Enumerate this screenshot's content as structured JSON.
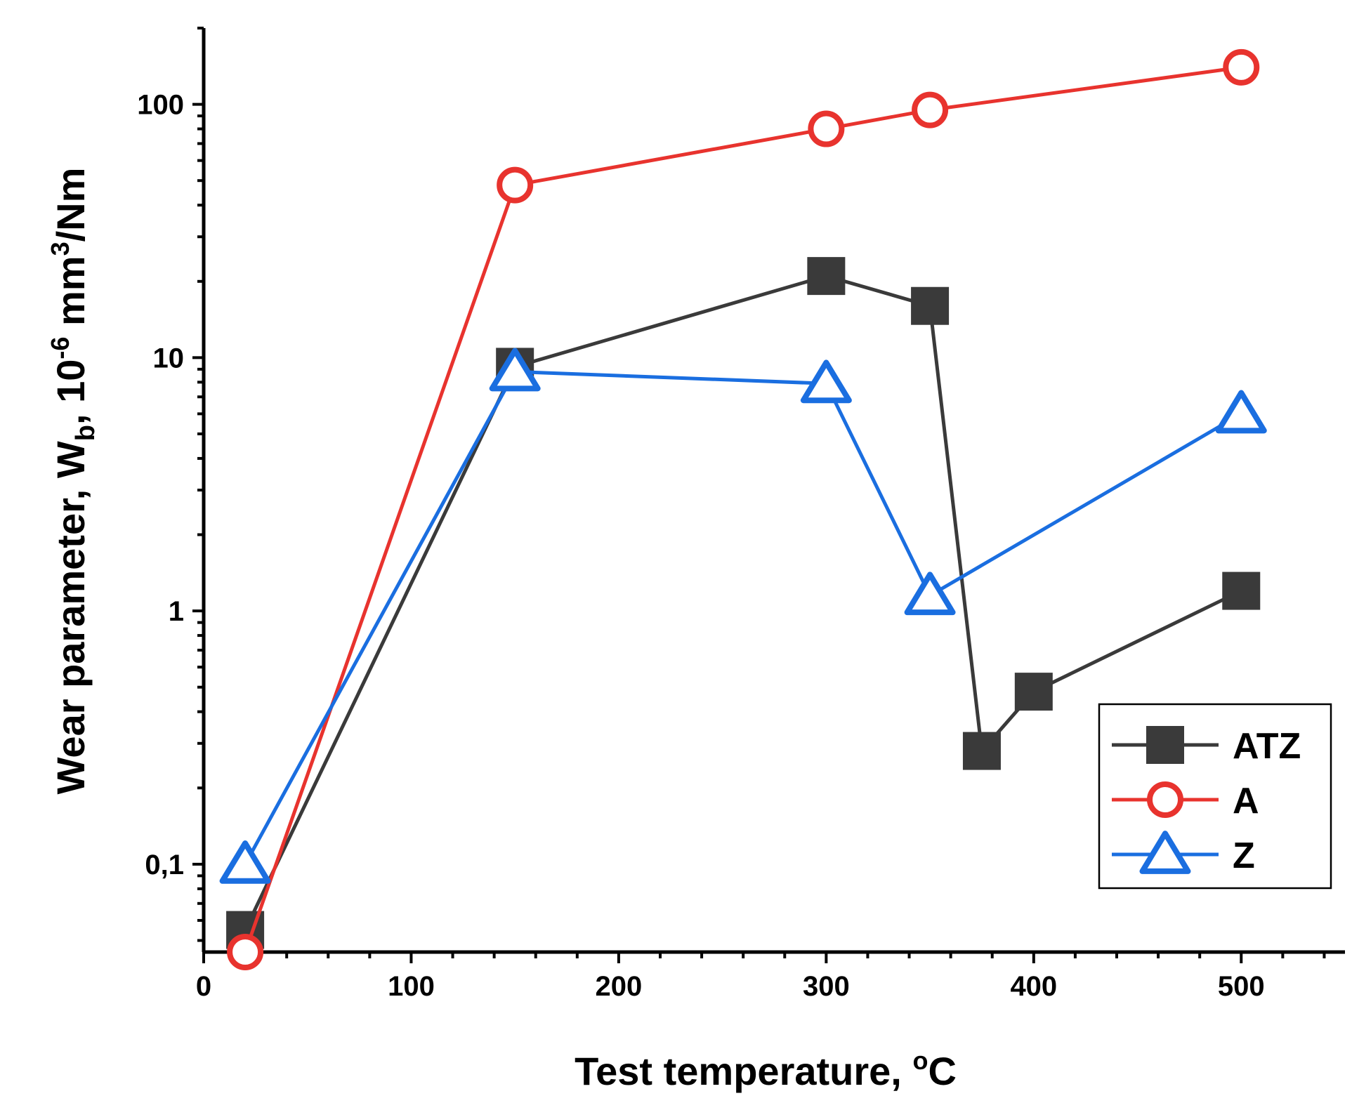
{
  "chart_data": {
    "type": "line",
    "xlabel": "Test temperature, ",
    "xlabel_unit": "C",
    "xlabel_super": "o",
    "ylabel": {
      "prefix": "Wear parameter, W",
      "sub": "b",
      "mid": ", 10",
      "sup1": "-6",
      "mid2": " mm",
      "sup2": "3",
      "suffix": "/Nm"
    },
    "xlim": [
      0,
      550
    ],
    "ylim": [
      0.045,
      200
    ],
    "yscale": "log",
    "x_ticks": [
      0,
      100,
      200,
      300,
      400,
      500
    ],
    "x_tick_labels": [
      "0",
      "100",
      "200",
      "300",
      "400",
      "500"
    ],
    "y_ticks": [
      0.1,
      1,
      10,
      100
    ],
    "y_tick_labels": [
      "0,1",
      "1",
      "10",
      "100"
    ],
    "legend_position": "lower-right",
    "series": [
      {
        "name": "ATZ",
        "color": "#3a3a3a",
        "marker": "square",
        "x": [
          20,
          150,
          300,
          350,
          375,
          400,
          500
        ],
        "y": [
          0.055,
          9.2,
          21,
          16,
          0.28,
          0.48,
          1.2
        ]
      },
      {
        "name": "A",
        "color": "#e8332e",
        "marker": "circle",
        "x": [
          20,
          150,
          300,
          350,
          500
        ],
        "y": [
          0.045,
          48,
          80,
          95,
          140
        ]
      },
      {
        "name": "Z",
        "color": "#1a6ee0",
        "marker": "triangle",
        "x": [
          20,
          150,
          300,
          350,
          500
        ],
        "y": [
          0.1,
          8.8,
          7.9,
          1.15,
          6.0
        ]
      }
    ]
  }
}
